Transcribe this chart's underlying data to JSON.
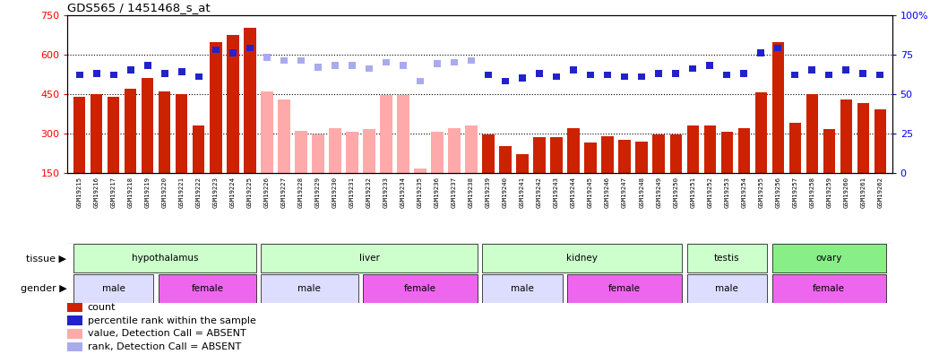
{
  "title": "GDS565 / 1451468_s_at",
  "samples": [
    "GSM19215",
    "GSM19216",
    "GSM19217",
    "GSM19218",
    "GSM19219",
    "GSM19220",
    "GSM19221",
    "GSM19222",
    "GSM19223",
    "GSM19224",
    "GSM19225",
    "GSM19226",
    "GSM19227",
    "GSM19228",
    "GSM19229",
    "GSM19230",
    "GSM19231",
    "GSM19232",
    "GSM19233",
    "GSM19234",
    "GSM19235",
    "GSM19236",
    "GSM19237",
    "GSM19238",
    "GSM19239",
    "GSM19240",
    "GSM19241",
    "GSM19242",
    "GSM19243",
    "GSM19244",
    "GSM19245",
    "GSM19246",
    "GSM19247",
    "GSM19248",
    "GSM19249",
    "GSM19250",
    "GSM19251",
    "GSM19252",
    "GSM19253",
    "GSM19254",
    "GSM19255",
    "GSM19256",
    "GSM19257",
    "GSM19258",
    "GSM19259",
    "GSM19260",
    "GSM19261",
    "GSM19262"
  ],
  "count": [
    440,
    450,
    440,
    470,
    510,
    460,
    450,
    330,
    645,
    675,
    700,
    460,
    430,
    310,
    295,
    320,
    305,
    315,
    445,
    445,
    165,
    305,
    320,
    330,
    295,
    250,
    220,
    285,
    285,
    320,
    265,
    290,
    275,
    270,
    295,
    295,
    330,
    330,
    305,
    320,
    455,
    645,
    340,
    450,
    315,
    430,
    415,
    390
  ],
  "rank": [
    62,
    63,
    62,
    65,
    68,
    63,
    64,
    61,
    78,
    76,
    79,
    73,
    71,
    71,
    67,
    68,
    68,
    66,
    70,
    68,
    58,
    69,
    70,
    71,
    62,
    58,
    60,
    63,
    61,
    65,
    62,
    62,
    61,
    61,
    63,
    63,
    66,
    68,
    62,
    63,
    76,
    79,
    62,
    65,
    62,
    65,
    63,
    62
  ],
  "absent": [
    false,
    false,
    false,
    false,
    false,
    false,
    false,
    false,
    false,
    false,
    false,
    true,
    true,
    true,
    true,
    true,
    true,
    true,
    true,
    true,
    true,
    true,
    true,
    true,
    false,
    false,
    false,
    false,
    false,
    false,
    false,
    false,
    false,
    false,
    false,
    false,
    false,
    false,
    false,
    false,
    false,
    false,
    false,
    false,
    false,
    false,
    false,
    false
  ],
  "ylim_left": [
    150,
    750
  ],
  "ylim_right": [
    0,
    100
  ],
  "yticks_left": [
    150,
    300,
    450,
    600,
    750
  ],
  "yticks_right": [
    0,
    25,
    50,
    75,
    100
  ],
  "bar_color_present": "#cc2200",
  "bar_color_absent": "#ffaaaa",
  "dot_color_present": "#2222cc",
  "dot_color_absent": "#aaaaee",
  "xtick_bg_color": "#cccccc",
  "tissues": [
    {
      "label": "hypothalamus",
      "start": 0,
      "end": 10,
      "color": "#ccffcc"
    },
    {
      "label": "liver",
      "start": 11,
      "end": 23,
      "color": "#ccffcc"
    },
    {
      "label": "kidney",
      "start": 24,
      "end": 35,
      "color": "#ccffcc"
    },
    {
      "label": "testis",
      "start": 36,
      "end": 40,
      "color": "#ccffcc"
    },
    {
      "label": "ovary",
      "start": 41,
      "end": 47,
      "color": "#88ee88"
    }
  ],
  "genders": [
    {
      "label": "male",
      "start": 0,
      "end": 4,
      "color": "#ddddff"
    },
    {
      "label": "female",
      "start": 5,
      "end": 10,
      "color": "#ee66ee"
    },
    {
      "label": "male",
      "start": 11,
      "end": 16,
      "color": "#ddddff"
    },
    {
      "label": "female",
      "start": 17,
      "end": 23,
      "color": "#ee66ee"
    },
    {
      "label": "male",
      "start": 24,
      "end": 28,
      "color": "#ddddff"
    },
    {
      "label": "female",
      "start": 29,
      "end": 35,
      "color": "#ee66ee"
    },
    {
      "label": "male",
      "start": 36,
      "end": 40,
      "color": "#ddddff"
    },
    {
      "label": "female",
      "start": 41,
      "end": 47,
      "color": "#ee66ee"
    }
  ],
  "legend": [
    {
      "label": "count",
      "color": "#cc2200"
    },
    {
      "label": "percentile rank within the sample",
      "color": "#2222cc"
    },
    {
      "label": "value, Detection Call = ABSENT",
      "color": "#ffaaaa"
    },
    {
      "label": "rank, Detection Call = ABSENT",
      "color": "#aaaaee"
    }
  ],
  "bar_width": 0.7,
  "grid_lines": [
    300,
    450,
    600
  ],
  "dot_marker_size": 30
}
